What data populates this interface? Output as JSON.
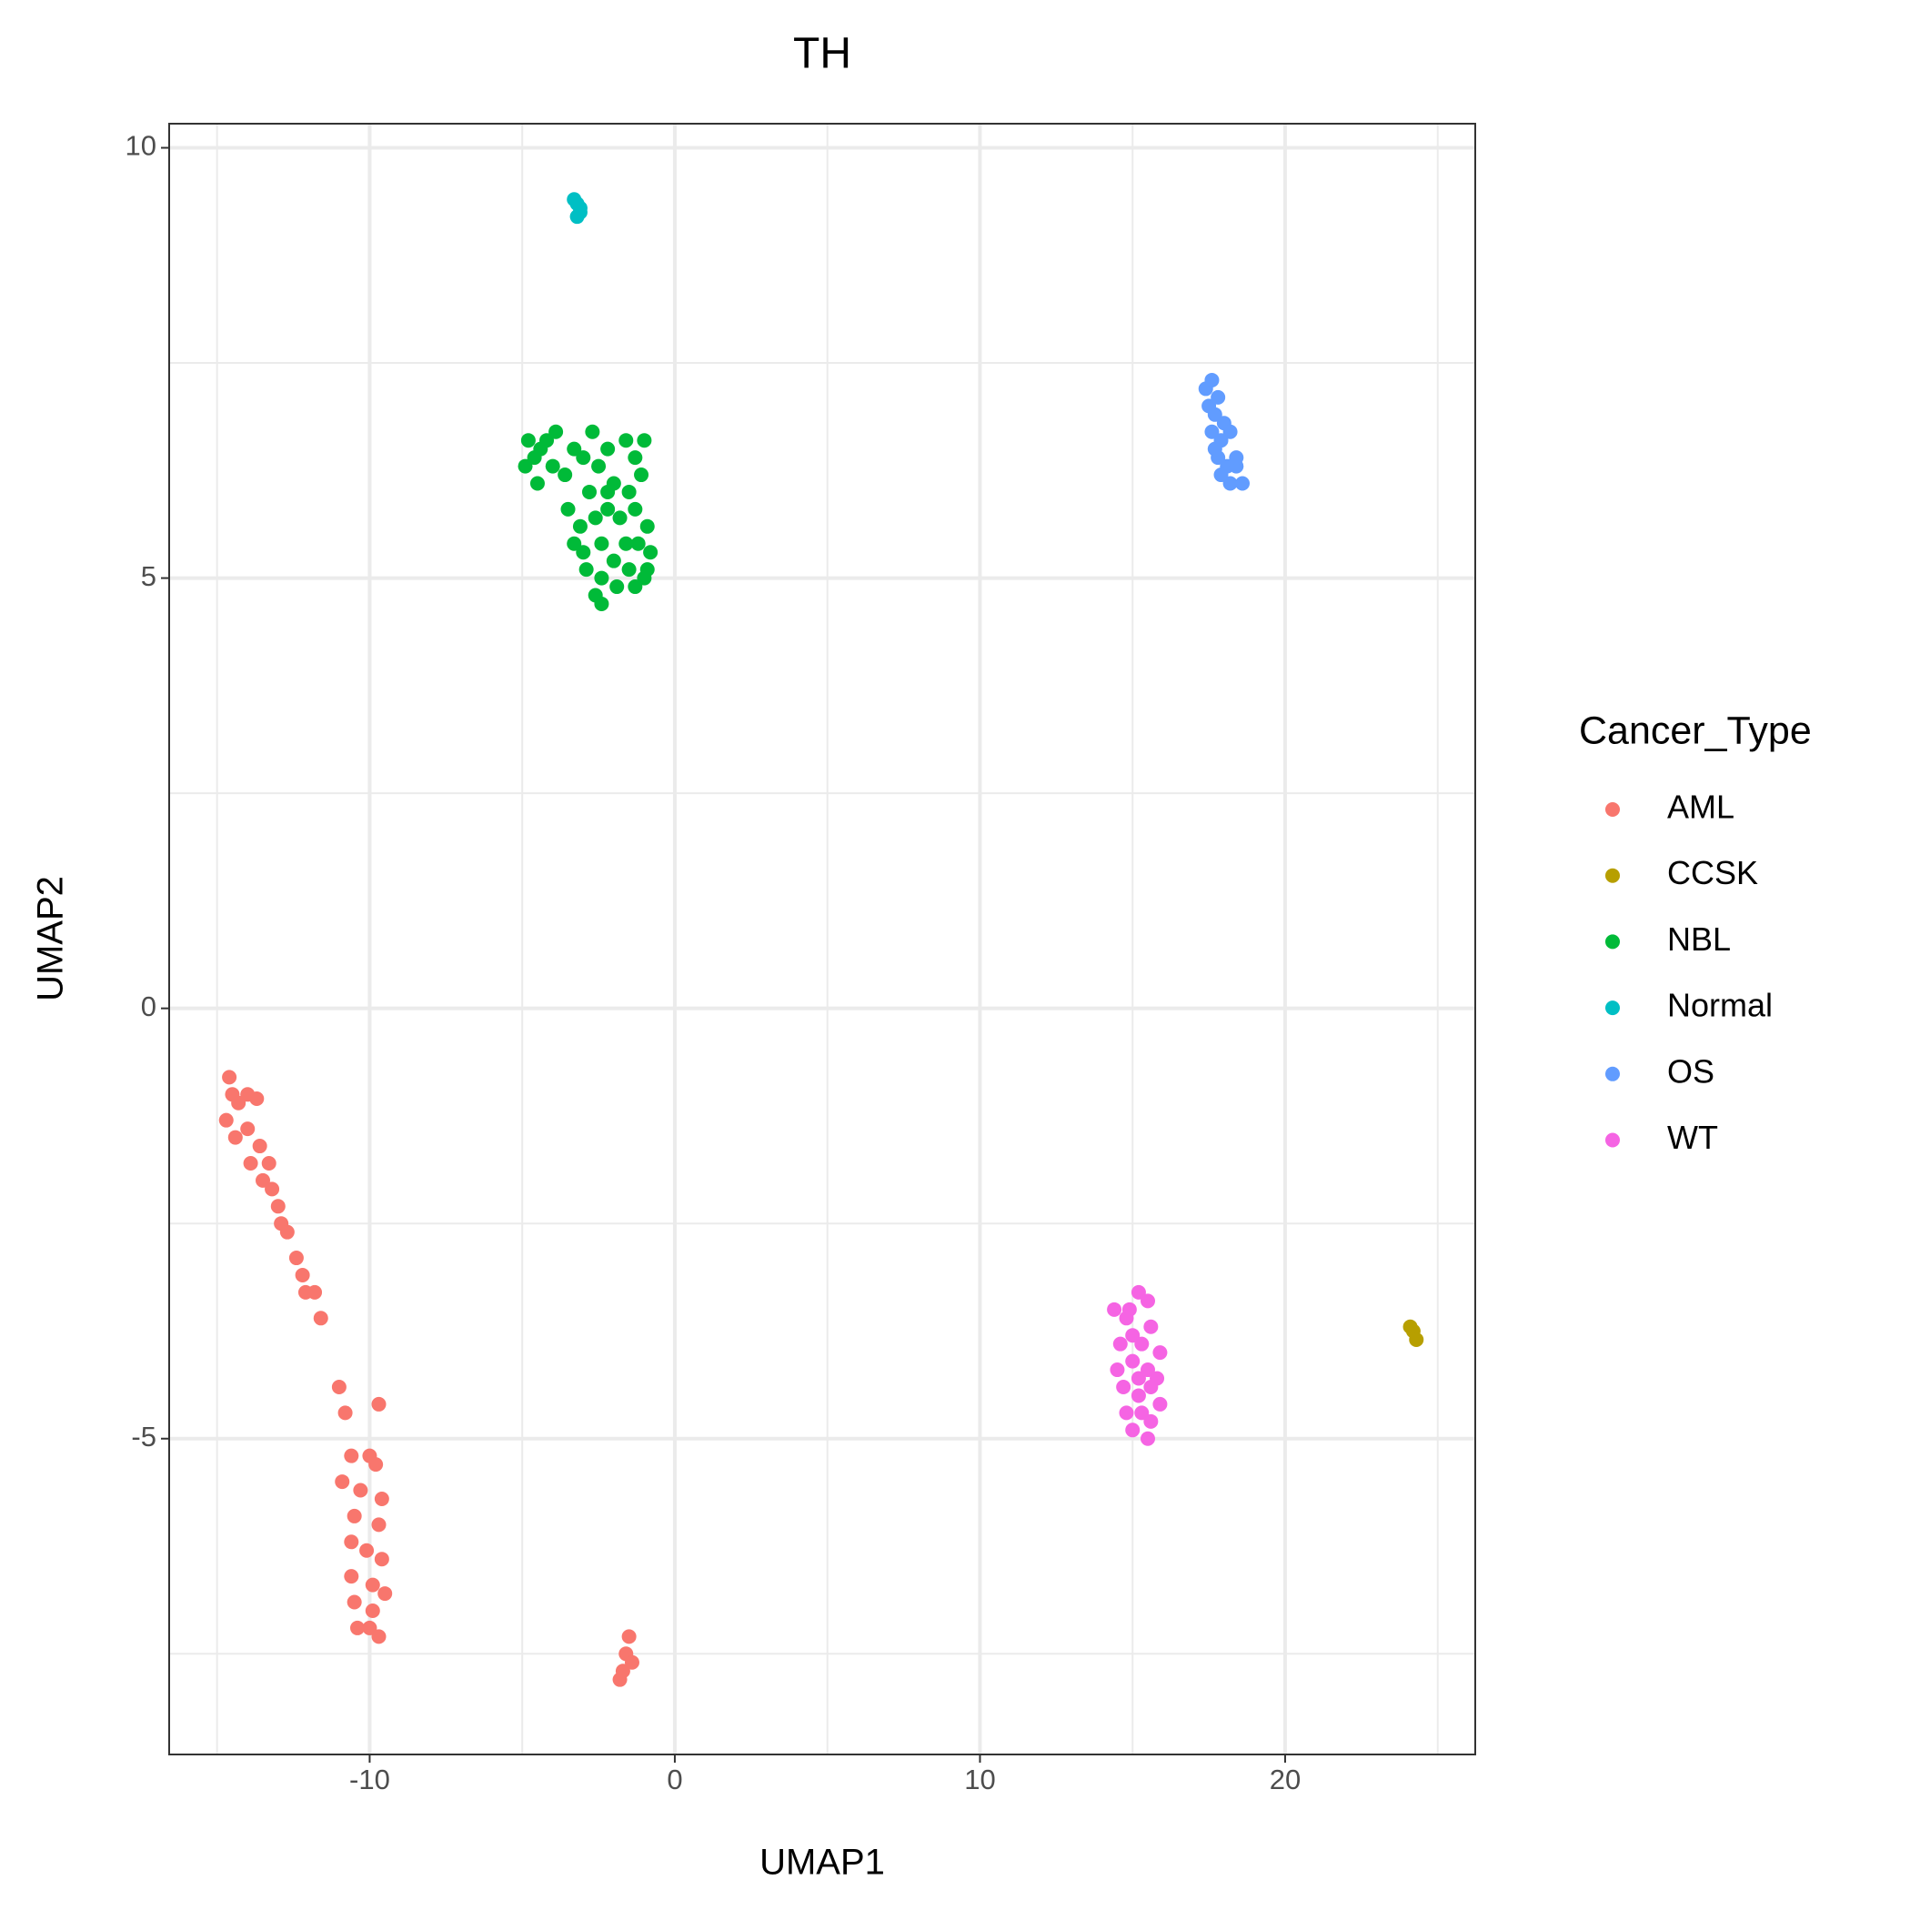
{
  "chart_data": {
    "type": "scatter",
    "title": "TH",
    "x_label": "UMAP1",
    "y_label": "UMAP2",
    "legend_title": "Cancer_Type",
    "legend_position": "right",
    "grid": true,
    "xlim": [
      -16.57,
      26.23
    ],
    "ylim": [
      -8.67,
      10.28
    ],
    "xticks": [
      -10,
      0,
      10,
      20
    ],
    "yticks": [
      -5,
      0,
      5,
      10
    ],
    "x_minor_grid": [
      -15,
      -5,
      5,
      15,
      25
    ],
    "y_minor_grid": [
      -7.5,
      -2.5,
      2.5,
      7.5
    ],
    "series": [
      {
        "name": "AML",
        "color": "#F8766D",
        "x": [
          -14.6,
          -14.5,
          -14.7,
          -14.3,
          -14.0,
          -13.7,
          -14.4,
          -14.0,
          -13.6,
          -13.9,
          -13.3,
          -13.5,
          -13.2,
          -13.0,
          -12.9,
          -12.7,
          -12.4,
          -12.2,
          -12.1,
          -11.8,
          -11.6,
          -11.0,
          -10.8,
          -9.7,
          -10.6,
          -10.0,
          -9.8,
          -10.9,
          -10.3,
          -9.6,
          -10.5,
          -9.7,
          -10.6,
          -10.1,
          -9.6,
          -10.6,
          -9.9,
          -9.5,
          -10.5,
          -9.9,
          -10.0,
          -9.7,
          -10.4,
          -1.5,
          -1.6,
          -1.4,
          -1.7,
          -1.8
        ],
        "values": [
          -0.8,
          -1.0,
          -1.3,
          -1.1,
          -1.0,
          -1.05,
          -1.5,
          -1.4,
          -1.6,
          -1.8,
          -1.8,
          -2.0,
          -2.1,
          -2.3,
          -2.5,
          -2.6,
          -2.9,
          -3.1,
          -3.3,
          -3.3,
          -3.6,
          -4.4,
          -4.7,
          -4.6,
          -5.2,
          -5.2,
          -5.3,
          -5.5,
          -5.6,
          -5.7,
          -5.9,
          -6.0,
          -6.2,
          -6.3,
          -6.4,
          -6.6,
          -6.7,
          -6.8,
          -6.9,
          -7.0,
          -7.2,
          -7.3,
          -7.2,
          -7.3,
          -7.5,
          -7.6,
          -7.7,
          -7.8
        ]
      },
      {
        "name": "CCSK",
        "color": "#B79F00",
        "x": [
          24.1,
          24.2,
          24.3
        ],
        "values": [
          -3.7,
          -3.75,
          -3.85
        ]
      },
      {
        "name": "NBL",
        "color": "#00BA38",
        "x": [
          -4.8,
          -4.6,
          -4.9,
          -4.4,
          -4.2,
          -3.9,
          -4.5,
          -4.0,
          -3.6,
          -3.3,
          -3.0,
          -2.7,
          -2.5,
          -2.2,
          -1.6,
          -1.3,
          -1.0,
          -1.1,
          -1.5,
          -2.0,
          -2.8,
          -3.5,
          -3.1,
          -2.6,
          -2.2,
          -1.8,
          -1.3,
          -0.9,
          -0.8,
          -1.2,
          -1.6,
          -2.4,
          -3.0,
          -2.9,
          -2.4,
          -2.0,
          -1.5,
          -1.0,
          -2.6,
          -2.4,
          -1.9,
          -1.3,
          -0.9,
          -3.3,
          -2.2
        ],
        "values": [
          6.6,
          6.4,
          6.3,
          6.5,
          6.6,
          6.7,
          6.1,
          6.3,
          6.2,
          6.5,
          6.4,
          6.7,
          6.3,
          6.5,
          6.6,
          6.4,
          6.6,
          6.2,
          6.0,
          6.1,
          6.0,
          5.8,
          5.6,
          5.7,
          5.8,
          5.7,
          5.8,
          5.6,
          5.3,
          5.4,
          5.4,
          5.4,
          5.3,
          5.1,
          5.0,
          5.2,
          5.1,
          5.0,
          4.8,
          4.7,
          4.9,
          4.9,
          5.1,
          5.4,
          6.0
        ]
      },
      {
        "name": "Normal",
        "color": "#00BFC4",
        "x": [
          -3.3,
          -3.2,
          -3.1,
          -3.2,
          -3.1
        ],
        "values": [
          9.4,
          9.35,
          9.25,
          9.2,
          9.3
        ]
      },
      {
        "name": "OS",
        "color": "#619CFF",
        "x": [
          17.4,
          17.6,
          17.5,
          17.8,
          17.7,
          18.0,
          17.6,
          17.9,
          18.2,
          17.8,
          18.1,
          18.4,
          17.9,
          18.2,
          18.6,
          18.4,
          17.7
        ],
        "values": [
          7.2,
          7.3,
          7.0,
          7.1,
          6.9,
          6.8,
          6.7,
          6.6,
          6.7,
          6.4,
          6.3,
          6.3,
          6.2,
          6.1,
          6.1,
          6.4,
          6.5
        ]
      },
      {
        "name": "WT",
        "color": "#F564E3",
        "x": [
          14.4,
          15.2,
          15.5,
          14.8,
          15.0,
          15.6,
          14.6,
          15.3,
          15.9,
          14.5,
          15.0,
          15.5,
          15.8,
          14.7,
          15.2,
          15.6,
          15.9,
          14.8,
          15.3,
          15.6,
          15.0,
          15.5,
          15.2,
          14.9
        ],
        "values": [
          -3.5,
          -3.3,
          -3.4,
          -3.6,
          -3.8,
          -3.7,
          -3.9,
          -3.9,
          -4.0,
          -4.2,
          -4.1,
          -4.2,
          -4.3,
          -4.4,
          -4.5,
          -4.4,
          -4.6,
          -4.7,
          -4.7,
          -4.8,
          -4.9,
          -5.0,
          -4.3,
          -3.5
        ]
      }
    ]
  }
}
